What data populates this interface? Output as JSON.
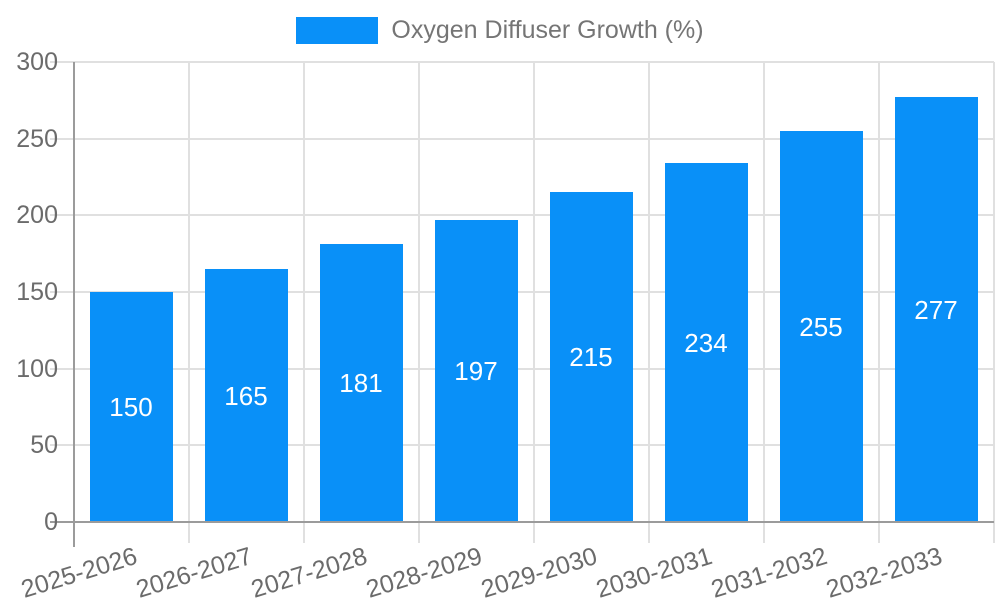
{
  "legend": {
    "label": "Oxygen Diffuser Growth (%)"
  },
  "chart_data": {
    "type": "bar",
    "title": "",
    "xlabel": "",
    "ylabel": "",
    "categories": [
      "2025-2026",
      "2026-2027",
      "2027-2028",
      "2028-2029",
      "2029-2030",
      "2030-2031",
      "2031-2032",
      "2032-2033"
    ],
    "series": [
      {
        "name": "Oxygen Diffuser Growth (%)",
        "values": [
          150,
          165,
          181,
          197,
          215,
          234,
          255,
          277
        ]
      }
    ],
    "value_labels_shown": true,
    "ylim": [
      0,
      300
    ],
    "yticks": [
      0,
      50,
      100,
      150,
      200,
      250,
      300
    ],
    "grid": true,
    "x_tick_rotation_deg": -17,
    "legend_position": "top",
    "colors": {
      "bar": "#0990f8",
      "grid": "#e0e0e0",
      "axis": "#9b9b9b",
      "tick_text": "#6b6b6b",
      "legend_text": "#757575",
      "value_label": "#ffffff",
      "background": "#ffffff"
    }
  }
}
